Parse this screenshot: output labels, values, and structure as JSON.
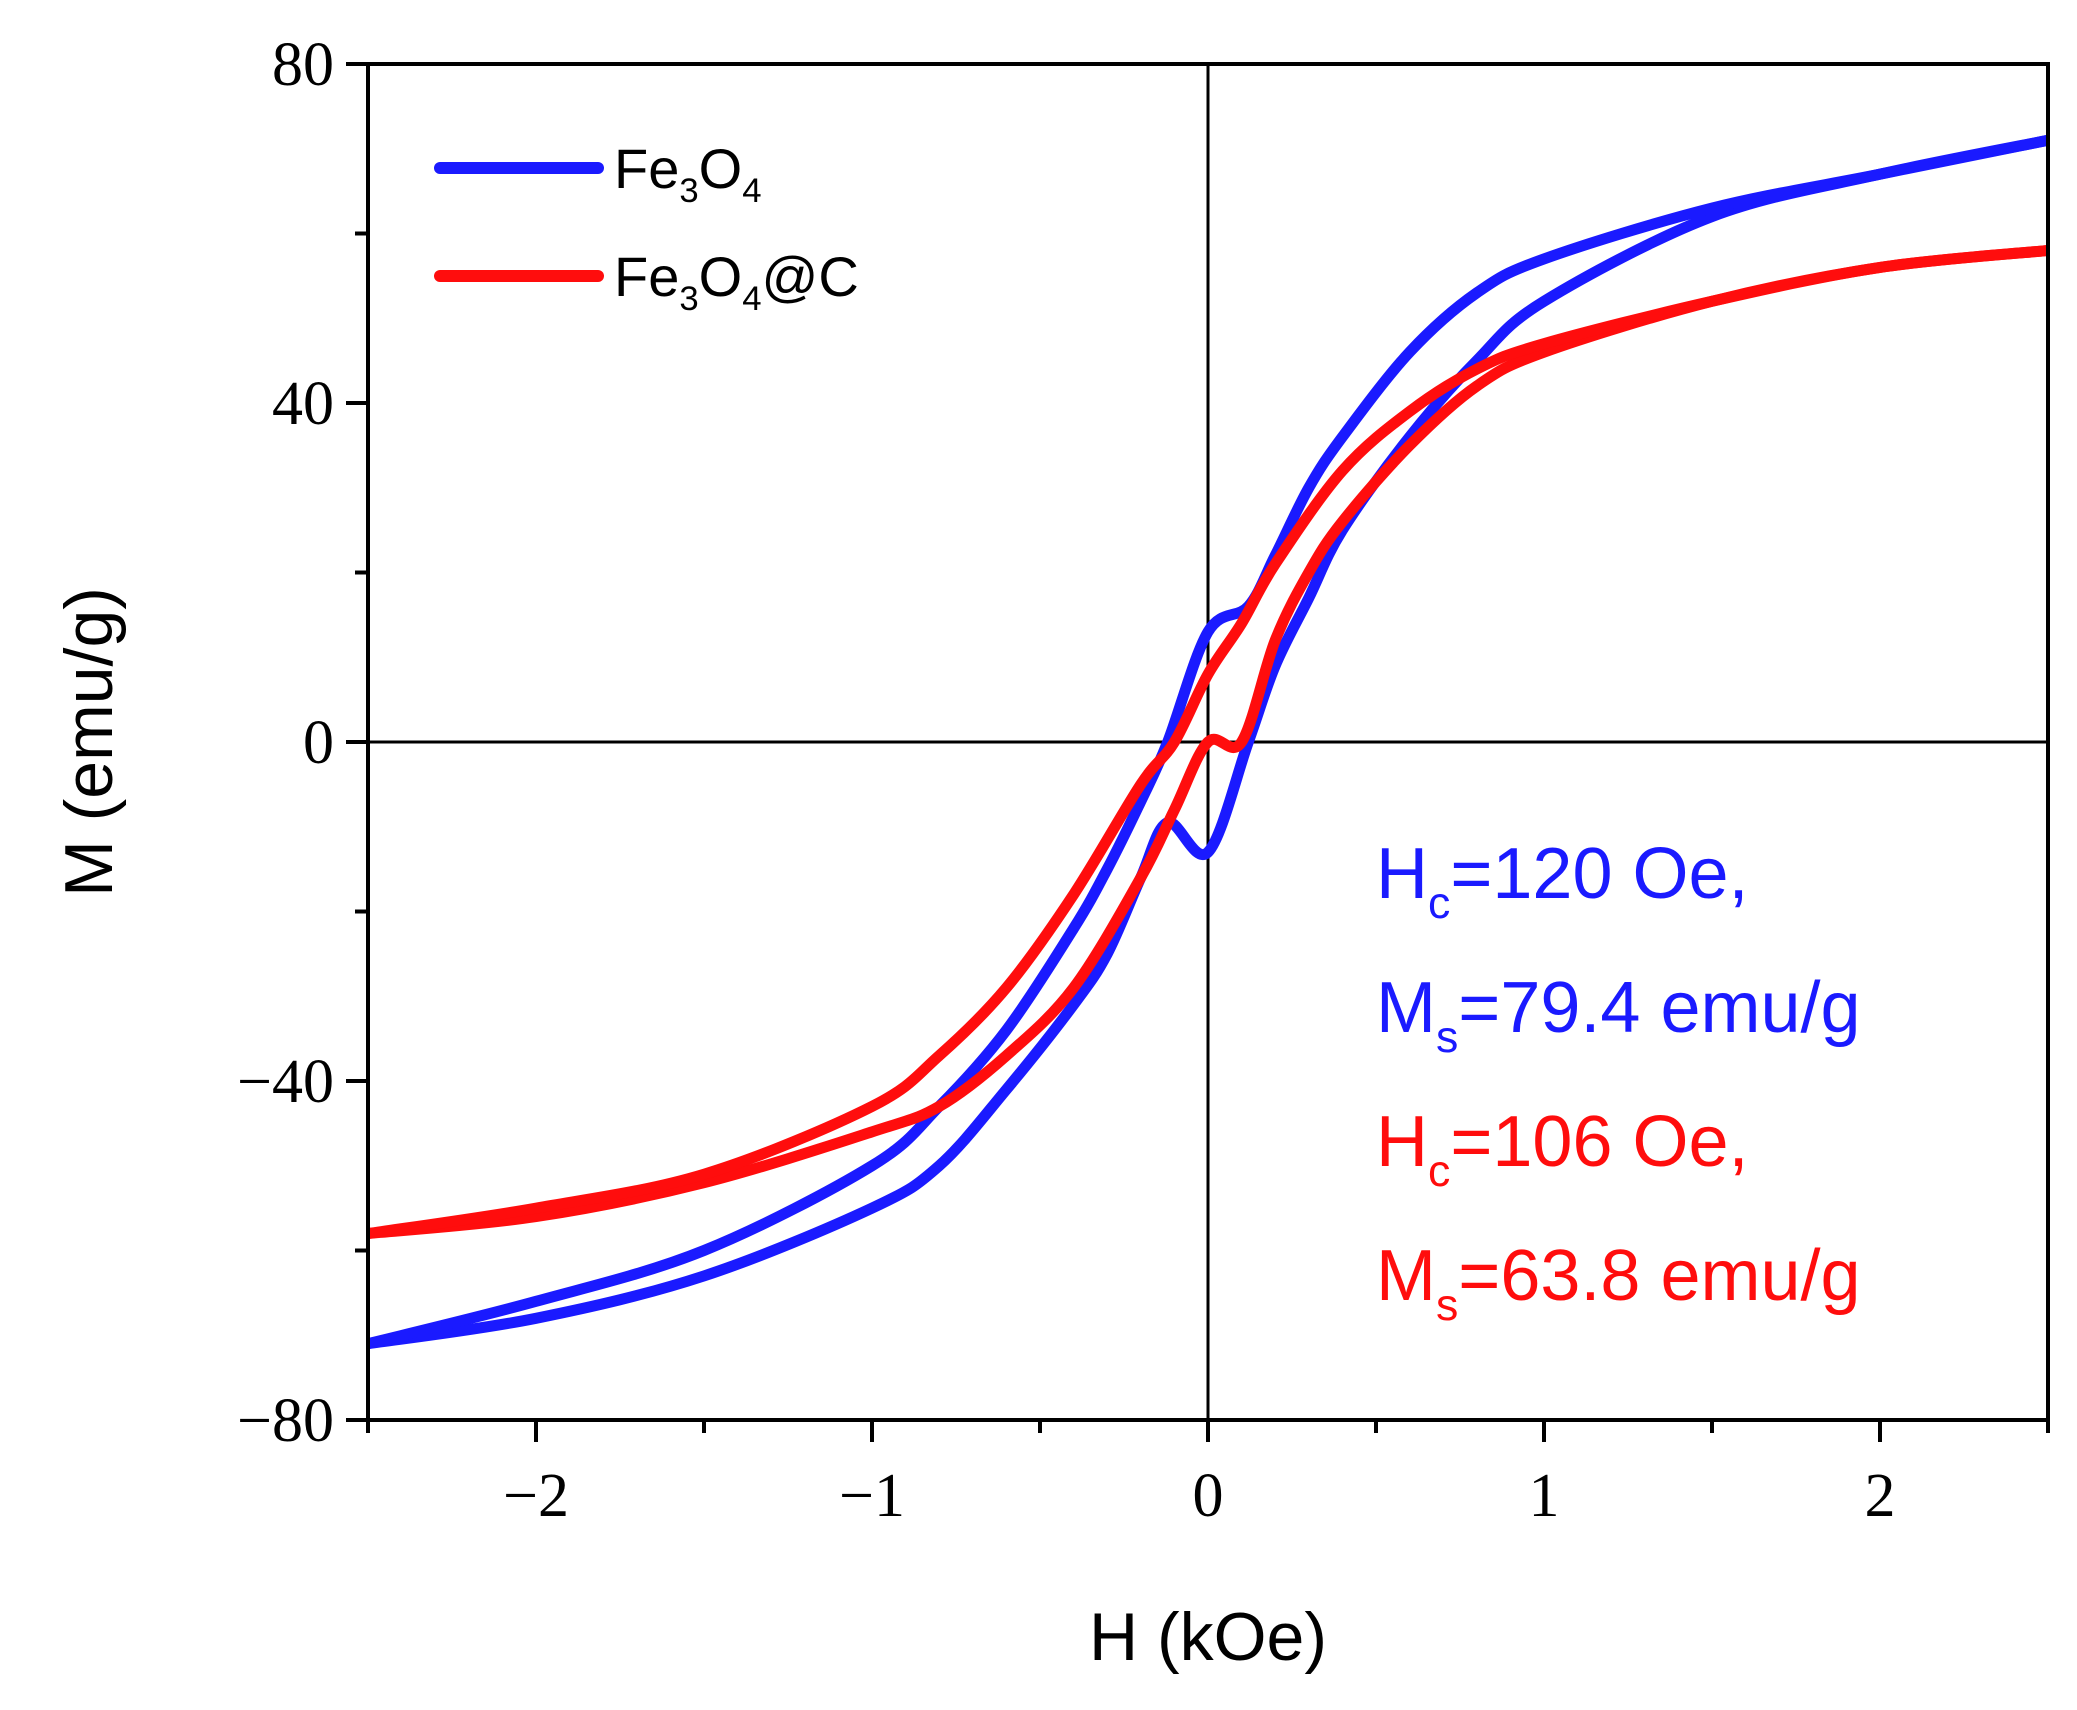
{
  "chart_data": {
    "type": "line",
    "title": "",
    "xlabel": "H (kOe)",
    "ylabel": "M (emu/g)",
    "xlim": [
      -2.5,
      2.5
    ],
    "ylim": [
      -80,
      80
    ],
    "x_ticks": [
      -2,
      -1,
      0,
      1,
      2
    ],
    "x_tick_labels": [
      "−2",
      "−1",
      "0",
      "1",
      "2"
    ],
    "y_ticks": [
      -80,
      -40,
      0,
      40,
      80
    ],
    "y_tick_labels": [
      "−80",
      "−40",
      "0",
      "40",
      "80"
    ],
    "x_minor_ticks": [
      -2.5,
      -1.5,
      -0.5,
      0.5,
      1.5,
      2.5
    ],
    "y_minor_ticks": [
      -60,
      -20,
      20,
      60
    ],
    "legend_position": "top-left",
    "series": [
      {
        "name": "Fe3O4",
        "legend_main": "Fe",
        "legend_sub1": "3",
        "legend_mid": "O",
        "legend_sub2": "4",
        "legend_tail": "",
        "color": "#1a1aff",
        "branch_up_H": [
          -2.5,
          -2.0,
          -1.5,
          -1.0,
          -0.8,
          -0.6,
          -0.4,
          -0.3,
          -0.2,
          -0.12,
          0.0,
          0.12,
          0.2,
          0.3,
          0.4,
          0.6,
          0.8,
          1.0,
          1.5,
          2.0,
          2.5
        ],
        "branch_up_M": [
          -71,
          -68,
          -63,
          -55,
          -50,
          -41,
          -31,
          -25,
          -16,
          -9.5,
          -13,
          0,
          9,
          17,
          25,
          36,
          45,
          52,
          62,
          67,
          71
        ],
        "branch_down_H": [
          2.5,
          2.0,
          1.5,
          1.0,
          0.8,
          0.6,
          0.4,
          0.3,
          0.2,
          0.12,
          0.0,
          -0.12,
          -0.2,
          -0.3,
          -0.4,
          -0.6,
          -0.8,
          -1.0,
          -1.5,
          -2.0,
          -2.5
        ],
        "branch_down_M": [
          71,
          67,
          63,
          57,
          53,
          46,
          36,
          30,
          22,
          16,
          13,
          0,
          -7,
          -15,
          -22,
          -34,
          -43,
          -50,
          -60,
          -66,
          -71
        ]
      },
      {
        "name": "Fe3O4@C",
        "legend_main": "Fe",
        "legend_sub1": "3",
        "legend_mid": "O",
        "legend_sub2": "4",
        "legend_tail": "@C",
        "color": "#ff0d0d",
        "branch_up_H": [
          -2.5,
          -2.0,
          -1.5,
          -1.0,
          -0.8,
          -0.6,
          -0.4,
          -0.2,
          -0.1,
          0.0,
          0.1,
          0.2,
          0.3,
          0.4,
          0.6,
          0.8,
          1.0,
          1.5,
          2.0,
          2.5
        ],
        "branch_up_M": [
          -58,
          -56,
          -52,
          -46,
          -43,
          -37,
          -29,
          -16,
          -8,
          0,
          0,
          12,
          20,
          26,
          35,
          42,
          46,
          52,
          56,
          58
        ],
        "branch_down_H": [
          2.5,
          2.0,
          1.5,
          1.0,
          0.8,
          0.6,
          0.4,
          0.2,
          0.1,
          0.0,
          -0.1,
          -0.2,
          -0.4,
          -0.6,
          -0.8,
          -1.0,
          -1.5,
          -2.0,
          -2.5
        ],
        "branch_down_M": [
          58,
          56,
          52,
          47,
          44,
          39,
          32,
          21,
          14,
          8,
          0,
          -5,
          -18,
          -29,
          -37,
          -43,
          -51,
          -55,
          -58
        ]
      }
    ],
    "annotations": [
      {
        "color": "#1a1aff",
        "main": "H",
        "sub": "c",
        "rest": "=120 Oe,"
      },
      {
        "color": "#1a1aff",
        "main": "M",
        "sub": "s",
        "rest": "=79.4 emu/g"
      },
      {
        "color": "#ff0d0d",
        "main": "H",
        "sub": "c",
        "rest": "=106 Oe,"
      },
      {
        "color": "#ff0d0d",
        "main": "M",
        "sub": "s",
        "rest": "=63.8 emu/g"
      }
    ]
  }
}
